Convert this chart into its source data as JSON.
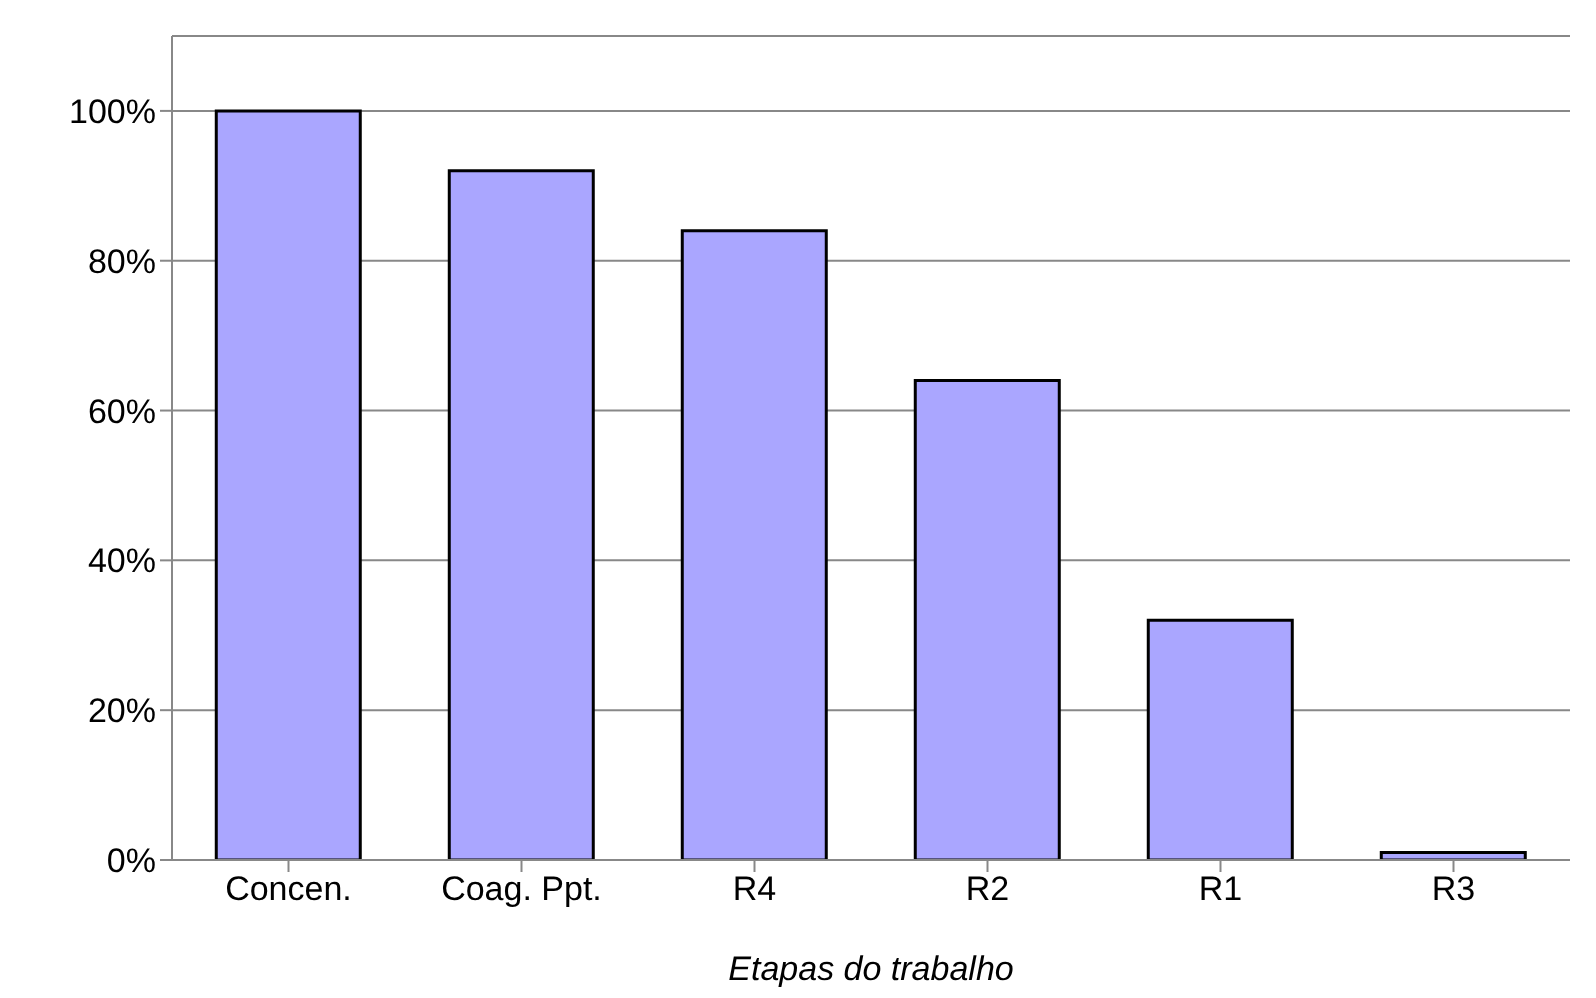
{
  "chart_data": {
    "type": "bar",
    "xlabel": "Etapas do trabalho",
    "categories": [
      "Concen.",
      "Coag. Ppt.",
      "R4",
      "R2",
      "R1",
      "R3"
    ],
    "values": [
      100,
      92,
      84,
      64,
      32,
      1
    ],
    "color": "#aaa6ff",
    "ylim": [
      0,
      110
    ],
    "yticks": [
      {
        "value": 0,
        "label": "0%"
      },
      {
        "value": 20,
        "label": "20%"
      },
      {
        "value": 40,
        "label": "40%"
      },
      {
        "value": 60,
        "label": "60%"
      },
      {
        "value": 80,
        "label": "80%"
      },
      {
        "value": 100,
        "label": "100%"
      }
    ],
    "grid": "y",
    "legend": false
  }
}
